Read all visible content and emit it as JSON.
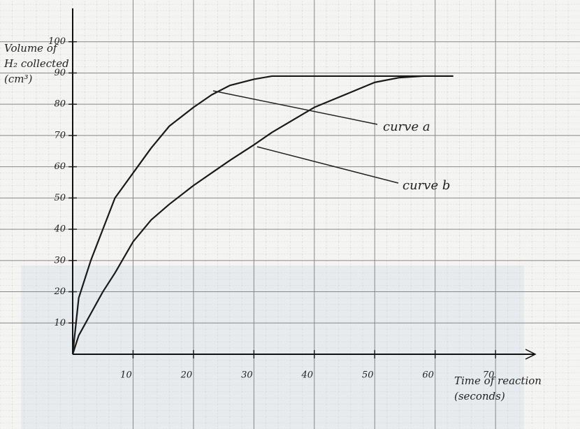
{
  "chart_data": {
    "type": "line",
    "y_label": "Volume of H₂ collected (cm³)",
    "x_label": "Time of reaction (seconds)",
    "x": [
      0,
      1,
      3,
      5,
      7,
      10,
      13,
      16,
      20,
      23,
      26,
      30,
      33,
      40,
      50,
      54,
      58,
      63
    ],
    "series": [
      {
        "name": "curve a",
        "color": "#1a1a1a",
        "values": [
          0,
          18,
          30,
          40,
          50,
          58,
          66,
          73,
          79,
          83,
          86,
          88,
          89,
          89,
          89,
          89,
          89,
          89
        ]
      },
      {
        "name": "curve b",
        "color": "#1a1a1a",
        "values": [
          0,
          6,
          13,
          20,
          26,
          36,
          43,
          48,
          54,
          58,
          62,
          67,
          71,
          79,
          87,
          88.5,
          89,
          89
        ]
      }
    ],
    "annotations": [
      "curve a",
      "curve b"
    ],
    "xlim": [
      0,
      76
    ],
    "ylim": [
      0,
      110
    ],
    "xticks": [
      10,
      20,
      30,
      40,
      50,
      60,
      70
    ],
    "yticks": [
      10,
      20,
      30,
      40,
      50,
      60,
      70,
      80,
      90,
      100
    ],
    "grid": true
  }
}
